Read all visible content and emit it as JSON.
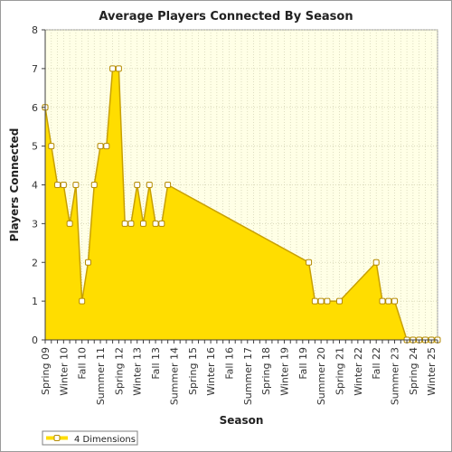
{
  "chart_data": {
    "type": "area",
    "title": "Average Players Connected By Season",
    "xlabel": "Season",
    "ylabel": "Players Connected",
    "ylim": [
      0,
      8
    ],
    "yticks": [
      0,
      1,
      2,
      3,
      4,
      5,
      6,
      7,
      8
    ],
    "grid": true,
    "legend_position": "bottom-left",
    "x": [
      0,
      1,
      2,
      3,
      4,
      5,
      6,
      7,
      8,
      9,
      10,
      11,
      12,
      13,
      14,
      15,
      16,
      17,
      18,
      19,
      20,
      21,
      22,
      23,
      24,
      25,
      26,
      27,
      28,
      29,
      30,
      31,
      32,
      33,
      34,
      35,
      36,
      37,
      38,
      39,
      40,
      41,
      42,
      43,
      44,
      45,
      46,
      47,
      48,
      49,
      50,
      51,
      52,
      53,
      54,
      55,
      56,
      57,
      58,
      59,
      60,
      61,
      62,
      63,
      64
    ],
    "tick_labels": [
      "Spring 09",
      "Winter 10",
      "Fall 10",
      "Summer 11",
      "Spring 12",
      "Winter 13",
      "Fall 13",
      "Summer 14",
      "Spring 15",
      "Winter 16",
      "Fall 16",
      "Summer 17",
      "Spring 18",
      "Winter 19",
      "Fall 19",
      "Summer 20",
      "Spring 21",
      "Winter 22",
      "Fall 22",
      "Summer 23",
      "Spring 24",
      "Winter 25"
    ],
    "series": [
      {
        "name": "4 Dimensions",
        "color": "#ffdd00",
        "points": [
          [
            0,
            6
          ],
          [
            1,
            5
          ],
          [
            2,
            4
          ],
          [
            3,
            4
          ],
          [
            4,
            3
          ],
          [
            5,
            4
          ],
          [
            6,
            1
          ],
          [
            7,
            2
          ],
          [
            8,
            4
          ],
          [
            9,
            5
          ],
          [
            10,
            5
          ],
          [
            11,
            7
          ],
          [
            12,
            7
          ],
          [
            13,
            3
          ],
          [
            14,
            3
          ],
          [
            15,
            4
          ],
          [
            16,
            3
          ],
          [
            17,
            4
          ],
          [
            18,
            3
          ],
          [
            19,
            3
          ],
          [
            20,
            4
          ],
          [
            43,
            2
          ],
          [
            44,
            1
          ],
          [
            45,
            1
          ],
          [
            46,
            1
          ],
          [
            48,
            1
          ],
          [
            54,
            2
          ],
          [
            55,
            1
          ],
          [
            56,
            1
          ],
          [
            57,
            1
          ],
          [
            59,
            0
          ],
          [
            60,
            0
          ],
          [
            61,
            0
          ],
          [
            62,
            0
          ],
          [
            63,
            0
          ],
          [
            64,
            0
          ]
        ]
      }
    ]
  }
}
